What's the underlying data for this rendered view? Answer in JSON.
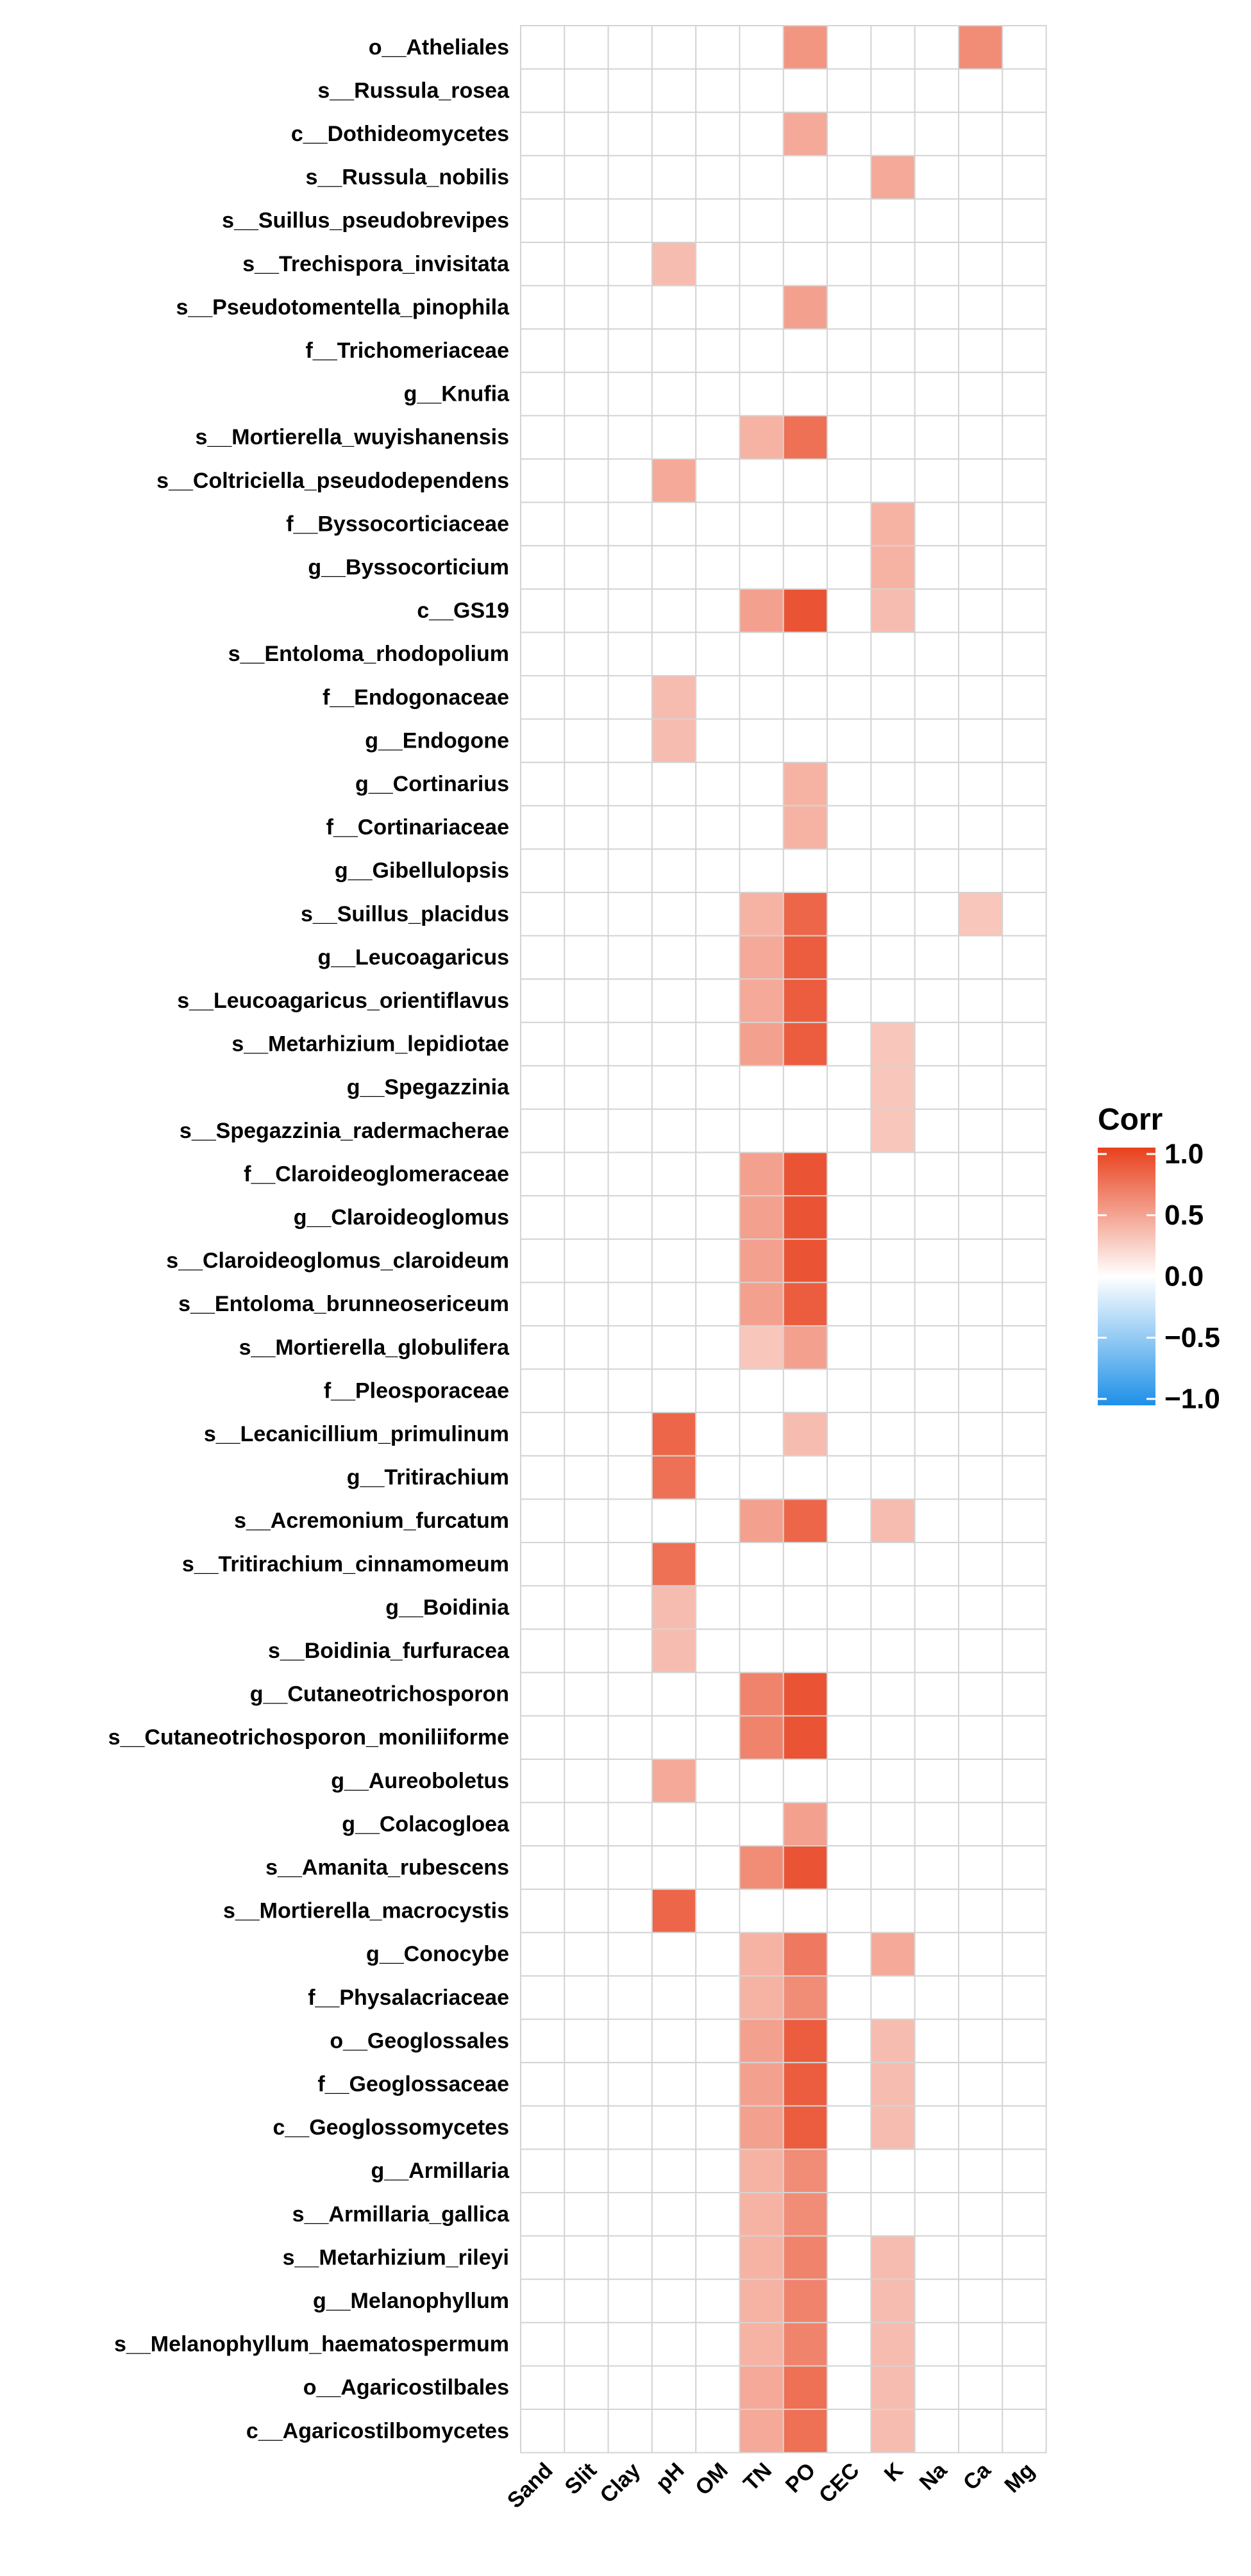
{
  "chart_data": {
    "type": "heatmap",
    "title": "",
    "xlabel": "",
    "ylabel": "",
    "columns": [
      "Sand",
      "Slit",
      "Clay",
      "pH",
      "OM",
      "TN",
      "PO",
      "CEC",
      "K",
      "Na",
      "Ca",
      "Mg"
    ],
    "rows": [
      "o__Atheliales",
      "s__Russula_rosea",
      "c__Dothideomycetes",
      "s__Russula_nobilis",
      "s__Suillus_pseudobrevipes",
      "s__Trechispora_invisitata",
      "s__Pseudotomentella_pinophila",
      "f__Trichomeriaceae",
      "g__Knufia",
      "s__Mortierella_wuyishanensis",
      "s__Coltriciella_pseudodependens",
      "f__Byssocorticiaceae",
      "g__Byssocorticium",
      "c__GS19",
      "s__Entoloma_rhodopolium",
      "f__Endogonaceae",
      "g__Endogone",
      "g__Cortinarius",
      "f__Cortinariaceae",
      "g__Gibellulopsis",
      "s__Suillus_placidus",
      "g__Leucoagaricus",
      "s__Leucoagaricus_orientiflavus",
      "s__Metarhizium_lepidiotae",
      "g__Spegazzinia",
      "s__Spegazzinia_radermacherae",
      "f__Claroideoglomeraceae",
      "g__Claroideoglomus",
      "s__Claroideoglomus_claroideum",
      "s__Entoloma_brunneosericeum",
      "s__Mortierella_globulifera",
      "f__Pleosporaceae",
      "s__Lecanicillium_primulinum",
      "g__Tritirachium",
      "s__Acremonium_furcatum",
      "s__Tritirachium_cinnamomeum",
      "g__Boidinia",
      "s__Boidinia_furfuracea",
      "g__Cutaneotrichosporon",
      "s__Cutaneotrichosporon_moniliiforme",
      "g__Aureoboletus",
      "g__Colacogloea",
      "s__Amanita_rubescens",
      "s__Mortierella_macrocystis",
      "g__Conocybe",
      "f__Physalacriaceae",
      "o__Geoglossales",
      "f__Geoglossaceae",
      "c__Geoglossomycetes",
      "g__Armillaria",
      "s__Armillaria_gallica",
      "s__Metarhizium_rileyi",
      "g__Melanophyllum",
      "s__Melanophyllum_haematospermum",
      "o__Agaricostilbales",
      "c__Agaricostilbomycetes"
    ],
    "values": [
      [
        0,
        0,
        0,
        0,
        0,
        0,
        0.55,
        0,
        0,
        0,
        0.6,
        0
      ],
      [
        0,
        0,
        0,
        0,
        0,
        0,
        0,
        0,
        0,
        0,
        0,
        0
      ],
      [
        0,
        0,
        0,
        0,
        0,
        0,
        0.45,
        0,
        0,
        0,
        0,
        0
      ],
      [
        0,
        0,
        0,
        0,
        0,
        0,
        0,
        0,
        0.45,
        0,
        0,
        0
      ],
      [
        0,
        0,
        0,
        0,
        0,
        0,
        0,
        0,
        0,
        0,
        0,
        0
      ],
      [
        0,
        0,
        0,
        0.35,
        0,
        0,
        0,
        0,
        0,
        0,
        0,
        0
      ],
      [
        0,
        0,
        0,
        0,
        0,
        0,
        0.5,
        0,
        0,
        0,
        0,
        0
      ],
      [
        0,
        0,
        0,
        0,
        0,
        0,
        0,
        0,
        0,
        0,
        0,
        0
      ],
      [
        0,
        0,
        0,
        0,
        0,
        0,
        0,
        0,
        0,
        0,
        0,
        0
      ],
      [
        0,
        0,
        0,
        0,
        0,
        0.4,
        0.75,
        0,
        0,
        0,
        0,
        0
      ],
      [
        0,
        0,
        0,
        0.45,
        0,
        0,
        0,
        0,
        0,
        0,
        0,
        0
      ],
      [
        0,
        0,
        0,
        0,
        0,
        0,
        0,
        0,
        0.4,
        0,
        0,
        0
      ],
      [
        0,
        0,
        0,
        0,
        0,
        0,
        0,
        0,
        0.4,
        0,
        0,
        0
      ],
      [
        0,
        0,
        0,
        0,
        0,
        0.5,
        0.9,
        0,
        0.35,
        0,
        0,
        0
      ],
      [
        0,
        0,
        0,
        0,
        0,
        0,
        0,
        0,
        0,
        0,
        0,
        0
      ],
      [
        0,
        0,
        0,
        0.35,
        0,
        0,
        0,
        0,
        0,
        0,
        0,
        0
      ],
      [
        0,
        0,
        0,
        0.35,
        0,
        0,
        0,
        0,
        0,
        0,
        0,
        0
      ],
      [
        0,
        0,
        0,
        0,
        0,
        0,
        0.4,
        0,
        0,
        0,
        0,
        0
      ],
      [
        0,
        0,
        0,
        0,
        0,
        0,
        0.4,
        0,
        0,
        0,
        0,
        0
      ],
      [
        0,
        0,
        0,
        0,
        0,
        0,
        0,
        0,
        0,
        0,
        0,
        0
      ],
      [
        0,
        0,
        0,
        0,
        0,
        0.4,
        0.8,
        0,
        0,
        0,
        0.3,
        0
      ],
      [
        0,
        0,
        0,
        0,
        0,
        0.45,
        0.85,
        0,
        0,
        0,
        0,
        0
      ],
      [
        0,
        0,
        0,
        0,
        0,
        0.45,
        0.85,
        0,
        0,
        0,
        0,
        0
      ],
      [
        0,
        0,
        0,
        0,
        0,
        0.5,
        0.85,
        0,
        0.3,
        0,
        0,
        0
      ],
      [
        0,
        0,
        0,
        0,
        0,
        0,
        0,
        0,
        0.3,
        0,
        0,
        0
      ],
      [
        0,
        0,
        0,
        0,
        0,
        0,
        0,
        0,
        0.3,
        0,
        0,
        0
      ],
      [
        0,
        0,
        0,
        0,
        0,
        0.5,
        0.9,
        0,
        0,
        0,
        0,
        0
      ],
      [
        0,
        0,
        0,
        0,
        0,
        0.5,
        0.9,
        0,
        0,
        0,
        0,
        0
      ],
      [
        0,
        0,
        0,
        0,
        0,
        0.5,
        0.9,
        0,
        0,
        0,
        0,
        0
      ],
      [
        0,
        0,
        0,
        0,
        0,
        0.5,
        0.85,
        0,
        0,
        0,
        0,
        0
      ],
      [
        0,
        0,
        0,
        0,
        0,
        0.3,
        0.5,
        0,
        0,
        0,
        0,
        0
      ],
      [
        0,
        0,
        0,
        0,
        0,
        0,
        0,
        0,
        0,
        0,
        0,
        0
      ],
      [
        0,
        0,
        0,
        0.8,
        0,
        0,
        0.35,
        0,
        0,
        0,
        0,
        0
      ],
      [
        0,
        0,
        0,
        0.75,
        0,
        0,
        0,
        0,
        0,
        0,
        0,
        0
      ],
      [
        0,
        0,
        0,
        0,
        0,
        0.5,
        0.8,
        0,
        0.35,
        0,
        0,
        0
      ],
      [
        0,
        0,
        0,
        0.75,
        0,
        0,
        0,
        0,
        0,
        0,
        0,
        0
      ],
      [
        0,
        0,
        0,
        0.35,
        0,
        0,
        0,
        0,
        0,
        0,
        0,
        0
      ],
      [
        0,
        0,
        0,
        0.35,
        0,
        0,
        0,
        0,
        0,
        0,
        0,
        0
      ],
      [
        0,
        0,
        0,
        0,
        0,
        0.65,
        0.9,
        0,
        0,
        0,
        0,
        0
      ],
      [
        0,
        0,
        0,
        0,
        0,
        0.65,
        0.9,
        0,
        0,
        0,
        0,
        0
      ],
      [
        0,
        0,
        0,
        0.45,
        0,
        0,
        0,
        0,
        0,
        0,
        0,
        0
      ],
      [
        0,
        0,
        0,
        0,
        0,
        0,
        0.5,
        0,
        0,
        0,
        0,
        0
      ],
      [
        0,
        0,
        0,
        0,
        0,
        0.6,
        0.9,
        0,
        0,
        0,
        0,
        0
      ],
      [
        0,
        0,
        0,
        0.8,
        0,
        0,
        0,
        0,
        0,
        0,
        0,
        0
      ],
      [
        0,
        0,
        0,
        0,
        0,
        0.4,
        0.7,
        0,
        0.45,
        0,
        0,
        0
      ],
      [
        0,
        0,
        0,
        0,
        0,
        0.4,
        0.6,
        0,
        0,
        0,
        0,
        0
      ],
      [
        0,
        0,
        0,
        0,
        0,
        0.5,
        0.85,
        0,
        0.35,
        0,
        0,
        0
      ],
      [
        0,
        0,
        0,
        0,
        0,
        0.5,
        0.85,
        0,
        0.35,
        0,
        0,
        0
      ],
      [
        0,
        0,
        0,
        0,
        0,
        0.5,
        0.85,
        0,
        0.35,
        0,
        0,
        0
      ],
      [
        0,
        0,
        0,
        0,
        0,
        0.4,
        0.6,
        0,
        0,
        0,
        0,
        0
      ],
      [
        0,
        0,
        0,
        0,
        0,
        0.4,
        0.6,
        0,
        0,
        0,
        0,
        0
      ],
      [
        0,
        0,
        0,
        0,
        0,
        0.4,
        0.65,
        0,
        0.35,
        0,
        0,
        0
      ],
      [
        0,
        0,
        0,
        0,
        0,
        0.4,
        0.65,
        0,
        0.35,
        0,
        0,
        0
      ],
      [
        0,
        0,
        0,
        0,
        0,
        0.4,
        0.65,
        0,
        0.35,
        0,
        0,
        0
      ],
      [
        0,
        0,
        0,
        0,
        0,
        0.45,
        0.75,
        0,
        0.35,
        0,
        0,
        0
      ],
      [
        0,
        0,
        0,
        0,
        0,
        0.45,
        0.75,
        0,
        0.35,
        0,
        0,
        0
      ]
    ],
    "legend": {
      "title": "Corr",
      "ticks": [
        "1.0",
        "0.5",
        "0.0",
        "−0.5",
        "−1.0"
      ],
      "range": [
        -1.0,
        1.0
      ],
      "placement": "right"
    },
    "colors": {
      "positive": "#e8401c",
      "mid": "#ffffff",
      "negative": "#1e90e8",
      "grid": "#d4d4d4"
    }
  }
}
